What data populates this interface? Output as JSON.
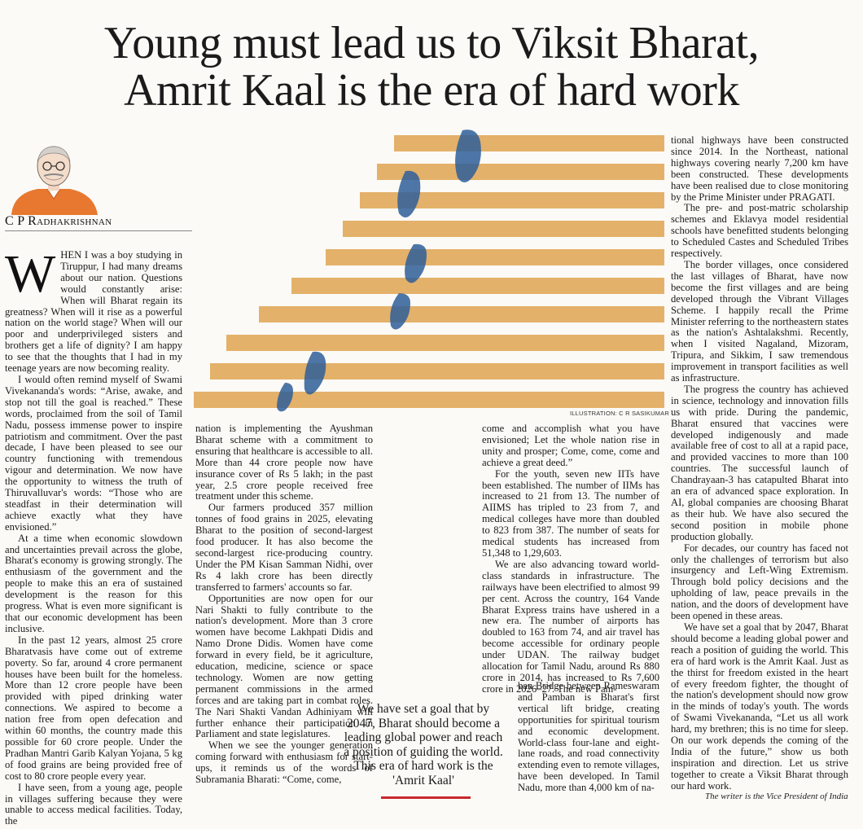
{
  "headline": {
    "line1": "Young must lead us to Viksit Bharat,",
    "line2": "Amrit Kaal is the era of hard work"
  },
  "byline": "C P Radhakrishnan",
  "illustration_credit": "ILLUSTRATION: C R SASIKUMAR",
  "pull_quote": "We have set a goal that by 2047, Bharat should become a leading global power and reach a position of guiding the world. This era of hard work is the 'Amrit Kaal'",
  "footer_note": "The writer is the Vice President of India",
  "colors": {
    "accent_red": "#c8282d",
    "stripe": "#e4b16a",
    "footprint": "#2f5f9a"
  },
  "article": {
    "dropcap": "W",
    "col1": [
      "HEN I was a boy studying in Tiruppur, I had many dreams about our nation. Questions would constantly arise: When will Bharat regain its greatness? When will it rise as a powerful nation on the world stage? When will our poor and underprivileged sisters and brothers get a life of dignity? I am happy to see that the thoughts that I had in my teenage years are now becoming reality.",
      "I would often remind myself of Swami Vivekananda's words: “Arise, awake, and stop not till the goal is reached.” These words, proclaimed from the soil of Tamil Nadu, possess immense power to inspire patriotism and commitment. Over the past decade, I have been pleased to see our country functioning with tremendous vigour and determination. We now have the opportunity to witness the truth of Thiruvalluvar's words: “Those who are steadfast in their determination will achieve exactly what they have envisioned.”",
      "At a time when economic slowdown and uncertainties prevail across the globe, Bharat's economy is growing strongly. The enthusiasm of the government and the people to make this an era of sustained development is the reason for this progress. What is even more significant is that our economic development has been inclusive.",
      "In the past 12 years, almost 25 crore Bharatvasis have come out of extreme poverty. So far, around 4 crore permanent houses have been built for the homeless. More than 12 crore people have been provided with piped drinking water connections. We aspired to become a nation free from open defecation and within 60 months, the country made this possible for 60 crore people. Under the Pradhan Mantri Garib Kalyan Yojana, 5 kg of food grains are being provided free of cost to 80 crore people every year.",
      "I have seen, from a young age, people in villages suffering because they were unable to access medical facilities. Today, the"
    ],
    "col2": [
      "nation is implementing the Ayushman Bharat scheme with a commitment to ensuring that healthcare is accessible to all. More than 44 crore people now have insurance cover of Rs 5 lakh; in the past year, 2.5 crore people received free treatment under this scheme.",
      "Our farmers produced 357 million tonnes of food grains in 2025, elevating Bharat to the position of second-largest food producer. It has also become the second-largest rice-producing country. Under the PM Kisan Samman Nidhi, over Rs 4 lakh crore has been directly transferred to farmers' accounts so far.",
      "Opportunities are now open for our Nari Shakti to fully contribute to the nation's development. More than 3 crore women have become Lakhpati Didis and Namo Drone Didis. Women have come forward in every field, be it agriculture, education, medicine, science or space technology. Women are now getting permanent commissions in the armed forces and are taking part in combat roles. The Nari Shakti Vandan Adhiniyam will further enhance their participation in Parliament and state legislatures.",
      "When we see the younger generation coming forward with enthusiasm for start-ups, it reminds us of the words of Subramania Bharati: “Come, come,"
    ],
    "col3_top": [
      "come and accomplish what you have envisioned; Let the whole nation rise in unity and prosper; Come, come, come and achieve a great deed.”",
      "For the youth, seven new IITs have been established. The number of IIMs has increased to 21 from 13. The number of AIIMS has tripled to 23 from 7, and medical colleges have more than doubled to 823 from 387. The number of seats for medical students has increased from 51,348 to 1,29,603.",
      "We are also advancing toward world-class standards in infrastructure. The railways have been electrified to almost 99 per cent. Across the country, 164 Vande Bharat Express trains have ushered in a new era. The number of airports has doubled to 163 from 74, and air travel has become accessible for ordinary people under UDAN. The railway budget allocation for Tamil Nadu, around Rs 880 crore in 2014, has increased to Rs 7,600 crore in 2026–27. The new Pam-"
    ],
    "col3_bottom": "ban Bridge between Rameswaram and Pamban is Bharat's first vertical lift bridge, creating opportunities for spiritual tourism and economic development. World-class four-lane and eight-lane roads, and road connectivity extending even to remote villages, have been developed. In Tamil Nadu, more than 4,000 km of na-",
    "col4": [
      "tional highways have been constructed since 2014. In the Northeast, national highways covering nearly 7,200 km have been constructed. These developments have been realised due to close monitoring by the Prime Minister under PRAGATI.",
      "The pre- and post-matric scholarship schemes and Eklavya model residential schools have benefitted students belonging to Scheduled Castes and Scheduled Tribes respectively.",
      "The border villages, once considered the last villages of Bharat, have now become the first villages and are being developed through the Vibrant Villages Scheme. I happily recall the Prime Minister referring to the northeastern states as the nation's Ashtalakshmi. Recently, when I visited Nagaland, Mizoram, Tripura, and Sikkim, I saw tremendous improvement in transport facilities as well as infrastructure.",
      "The progress the country has achieved in science, technology and innovation fills us with pride. During the pandemic, Bharat ensured that vaccines were developed indigenously and made available free of cost to all at a rapid pace, and provided vaccines to more than 100 countries. The successful launch of Chandrayaan-3 has catapulted Bharat into an era of advanced space exploration. In AI, global companies are choosing Bharat as their hub. We have also secured the second position in mobile phone production globally.",
      "For decades, our country has faced not only the challenges of terrorism but also insurgency and Left-Wing Extremism. Through bold policy decisions and the upholding of law, peace prevails in the nation, and the doors of development have been opened in these areas.",
      "We have set a goal that by 2047, Bharat should become a leading global power and reach a position of guiding the world. This era of hard work is the Amrit Kaal. Just as the thirst for freedom existed in the heart of every freedom fighter, the thought of the nation's development should now grow in the minds of today's youth. The words of Swami Vivekananda, “Let us all work hard, my brethren; this is no time for sleep. On our work depends the coming of the India of the future,” show us both inspiration and direction. Let us strive together to create a Viksit Bharat through our hard work."
    ]
  }
}
